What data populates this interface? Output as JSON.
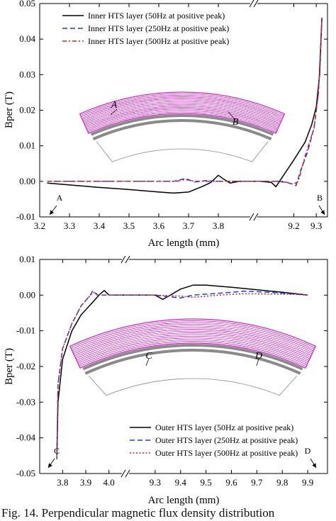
{
  "caption": "Fig. 14. Perpendicular magnetic flux density distribution",
  "chart_data": [
    {
      "type": "line",
      "xlabel": "Arc length (mm)",
      "ylabel": "Bper (T)",
      "ylim": [
        -0.01,
        0.05
      ],
      "yticks": [
        "0.05",
        "0.04",
        "0.03",
        "0.02",
        "0.01",
        "0.00",
        "-0.01"
      ],
      "yvals": [
        0.05,
        0.04,
        0.03,
        0.02,
        0.01,
        0.0,
        -0.01
      ],
      "axis_break": true,
      "segments": [
        {
          "xlim": [
            3.2,
            3.9
          ],
          "ticks": [
            3.2,
            3.3,
            3.4,
            3.5,
            3.6,
            3.7,
            3.8
          ],
          "tick_labels": [
            "3.2",
            "3.3",
            "3.4",
            "3.5",
            "3.6",
            "3.7",
            "3.8"
          ]
        },
        {
          "xlim": [
            9.05,
            9.35
          ],
          "ticks": [
            9.2,
            9.3
          ],
          "tick_labels": [
            "9.2",
            "9.3"
          ]
        }
      ],
      "legend_position": "top-left",
      "series": [
        {
          "name": "Inner HTS layer (50Hz at positive peak)",
          "color": "#000000",
          "dash": "",
          "points": [
            [
              3.225,
              -0.0005
            ],
            [
              3.3,
              -0.001
            ],
            [
              3.4,
              -0.0017
            ],
            [
              3.5,
              -0.0023
            ],
            [
              3.6,
              -0.003
            ],
            [
              3.65,
              -0.0033
            ],
            [
              3.7,
              -0.003
            ],
            [
              3.75,
              -0.0013
            ],
            [
              3.775,
              -0.0003
            ],
            [
              3.8,
              0.0017
            ],
            [
              3.82,
              0.0005
            ],
            [
              3.84,
              -0.0005
            ],
            [
              3.87,
              0.0
            ],
            [
              9.05,
              0.0
            ],
            [
              9.1,
              -0.0003
            ],
            [
              9.12,
              -0.0015
            ],
            [
              9.15,
              0.0013
            ],
            [
              9.2,
              0.006
            ],
            [
              9.25,
              0.011
            ],
            [
              9.28,
              0.016
            ],
            [
              9.3,
              0.021
            ],
            [
              9.315,
              0.03
            ],
            [
              9.325,
              0.046
            ]
          ]
        },
        {
          "name": "Inner HTS layer (250Hz at positive peak)",
          "color": "#1f3fd6",
          "dash": "7,4",
          "points": [
            [
              3.225,
              0.0
            ],
            [
              3.5,
              0.0
            ],
            [
              3.65,
              0.0
            ],
            [
              3.69,
              0.0008
            ],
            [
              3.72,
              -0.0002
            ],
            [
              3.76,
              0.0002
            ],
            [
              3.8,
              0.0
            ],
            [
              3.87,
              0.0
            ],
            [
              9.05,
              0.0
            ],
            [
              9.12,
              0.0
            ],
            [
              9.17,
              -0.0003
            ],
            [
              9.21,
              -0.0012
            ],
            [
              9.23,
              0.003
            ],
            [
              9.26,
              0.008
            ],
            [
              9.29,
              0.015
            ],
            [
              9.31,
              0.025
            ],
            [
              9.325,
              0.046
            ]
          ]
        },
        {
          "name": "Inner HTS layer (500Hz at positive peak)",
          "color": "#d42020",
          "dash": "6,3,2,3",
          "points": [
            [
              3.225,
              0.0
            ],
            [
              3.5,
              0.0
            ],
            [
              3.66,
              0.0
            ],
            [
              3.69,
              0.0005
            ],
            [
              3.72,
              0.0
            ],
            [
              3.87,
              0.0
            ],
            [
              9.05,
              0.0
            ],
            [
              9.15,
              0.0
            ],
            [
              9.2,
              -0.0008
            ],
            [
              9.22,
              0.0
            ],
            [
              9.25,
              0.007
            ],
            [
              9.29,
              0.015
            ],
            [
              9.31,
              0.025
            ],
            [
              9.325,
              0.046
            ]
          ]
        }
      ],
      "point_labels": [
        {
          "text": "A"
        },
        {
          "text": "B"
        }
      ],
      "inset_labels": [
        {
          "text": "A"
        },
        {
          "text": "B"
        }
      ]
    },
    {
      "type": "line",
      "xlabel": "Arc length (mm)",
      "ylabel": "Bper (T)",
      "ylim": [
        -0.05,
        0.01
      ],
      "yticks": [
        "0.01",
        "0.00",
        "-0.01",
        "-0.02",
        "-0.03",
        "-0.04",
        "-0.05"
      ],
      "yvals": [
        0.01,
        0.0,
        -0.01,
        -0.02,
        -0.03,
        -0.04,
        -0.05
      ],
      "axis_break": true,
      "segments": [
        {
          "xlim": [
            3.75,
            4.05
          ],
          "ticks": [
            3.8,
            3.9,
            4.0
          ],
          "tick_labels": [
            "3.8",
            "3.9",
            "4.0"
          ]
        },
        {
          "xlim": [
            9.2,
            9.95
          ],
          "ticks": [
            9.3,
            9.4,
            9.5,
            9.6,
            9.7,
            9.8,
            9.9
          ],
          "tick_labels": [
            "9.3",
            "9.4",
            "9.5",
            "9.6",
            "9.7",
            "9.8",
            "9.9"
          ]
        }
      ],
      "legend_position": "bottom-right",
      "series": [
        {
          "name": "Outer HTS layer (50Hz at positive peak)",
          "color": "#000000",
          "dash": "",
          "points": [
            [
              3.775,
              -0.046
            ],
            [
              3.78,
              -0.03
            ],
            [
              3.8,
              -0.018
            ],
            [
              3.84,
              -0.01
            ],
            [
              3.88,
              -0.0055
            ],
            [
              3.93,
              -0.002
            ],
            [
              3.96,
              0.0002
            ],
            [
              3.98,
              0.0013
            ],
            [
              4.0,
              0.0
            ],
            [
              4.05,
              0.0
            ],
            [
              9.2,
              0.0
            ],
            [
              9.3,
              0.0
            ],
            [
              9.33,
              -0.0012
            ],
            [
              9.36,
              0.0
            ],
            [
              9.4,
              0.0017
            ],
            [
              9.45,
              0.0028
            ],
            [
              9.5,
              0.0028
            ],
            [
              9.6,
              0.0022
            ],
            [
              9.7,
              0.0015
            ],
            [
              9.8,
              0.0008
            ],
            [
              9.9,
              0.0
            ]
          ]
        },
        {
          "name": "Outer HTS layer (250Hz at positive peak)",
          "color": "#1f3fd6",
          "dash": "7,4",
          "points": [
            [
              3.775,
              -0.046
            ],
            [
              3.78,
              -0.025
            ],
            [
              3.8,
              -0.015
            ],
            [
              3.84,
              -0.008
            ],
            [
              3.88,
              -0.003
            ],
            [
              3.92,
              0.0
            ],
            [
              3.93,
              0.0012
            ],
            [
              3.95,
              0.0
            ],
            [
              4.05,
              0.0
            ],
            [
              9.2,
              0.0
            ],
            [
              9.3,
              0.0
            ],
            [
              9.4,
              -0.0008
            ],
            [
              9.45,
              0.0
            ],
            [
              9.55,
              0.0005
            ],
            [
              9.65,
              0.0011
            ],
            [
              9.75,
              0.0008
            ],
            [
              9.85,
              0.0003
            ],
            [
              9.9,
              0.0
            ]
          ]
        },
        {
          "name": "Outer HTS layer (500Hz at positive peak)",
          "color": "#d42020",
          "dash": "2,2.5",
          "points": [
            [
              3.775,
              -0.046
            ],
            [
              3.78,
              -0.025
            ],
            [
              3.8,
              -0.015
            ],
            [
              3.84,
              -0.008
            ],
            [
              3.88,
              -0.003
            ],
            [
              3.92,
              0.0
            ],
            [
              3.935,
              0.0008
            ],
            [
              3.96,
              0.0
            ],
            [
              4.05,
              0.0
            ],
            [
              9.2,
              0.0
            ],
            [
              9.3,
              0.0
            ],
            [
              9.4,
              -0.0003
            ],
            [
              9.45,
              -0.0006
            ],
            [
              9.55,
              0.0
            ],
            [
              9.65,
              0.0004
            ],
            [
              9.75,
              0.0003
            ],
            [
              9.85,
              0.0002
            ],
            [
              9.9,
              0.0
            ]
          ]
        }
      ],
      "point_labels": [
        {
          "text": "C"
        },
        {
          "text": "D"
        }
      ],
      "inset_labels": [
        {
          "text": "C"
        },
        {
          "text": "D"
        }
      ]
    }
  ]
}
